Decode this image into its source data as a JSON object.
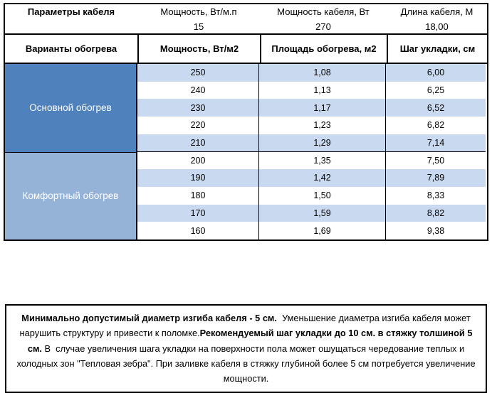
{
  "colors": {
    "primary_blue": "#4F81BD",
    "secondary_blue": "#95B3D7",
    "stripe_blue": "#C9DAF0",
    "border": "#000000"
  },
  "params_table": {
    "title": "Параметры кабеля",
    "columns": [
      {
        "label": "Мощность, Вт/м.п",
        "value": "15"
      },
      {
        "label": "Мощность кабеля, Вт",
        "value": "270"
      },
      {
        "label": "Длина кабеля, М",
        "value": "18,00"
      }
    ]
  },
  "heating_table": {
    "headers": [
      "Варианты обогрева",
      "Мощность, Вт/м2",
      "Площадь обогрева, м2",
      "Шаг укладки, см"
    ],
    "groups": [
      {
        "label": "Основной обогрев",
        "rows": [
          [
            "250",
            "1,08",
            "6,00"
          ],
          [
            "240",
            "1,13",
            "6,25"
          ],
          [
            "230",
            "1,17",
            "6,52"
          ],
          [
            "220",
            "1,23",
            "6,82"
          ],
          [
            "210",
            "1,29",
            "7,14"
          ]
        ]
      },
      {
        "label": "Комфортный обогрев",
        "rows": [
          [
            "200",
            "1,35",
            "7,50"
          ],
          [
            "190",
            "1,42",
            "7,89"
          ],
          [
            "180",
            "1,50",
            "8,33"
          ],
          [
            "170",
            "1,59",
            "8,82"
          ],
          [
            "160",
            "1,69",
            "9,38"
          ]
        ]
      }
    ]
  },
  "note": {
    "segments": [
      {
        "text": "Минимально допустимый диаметр изгиба кабеля - 5 см.",
        "bold": true
      },
      {
        "text": "  Уменьшение диаметра изгиба кабеля может нарушить структуру и привести к поломке.",
        "bold": false
      },
      {
        "text": "Рекомендуемый шаг укладки до 10 см. в стяжку толшиной 5 см.",
        "bold": true
      },
      {
        "text": " В  случае увеличения шага укладки на поверхности пола может ошущаться чередование теплых и холодных зон \"Тепловая зебра\". При заливке кабеля в стяжку глубиной более 5 см потребуется увеличение мощности.",
        "bold": false
      }
    ]
  }
}
